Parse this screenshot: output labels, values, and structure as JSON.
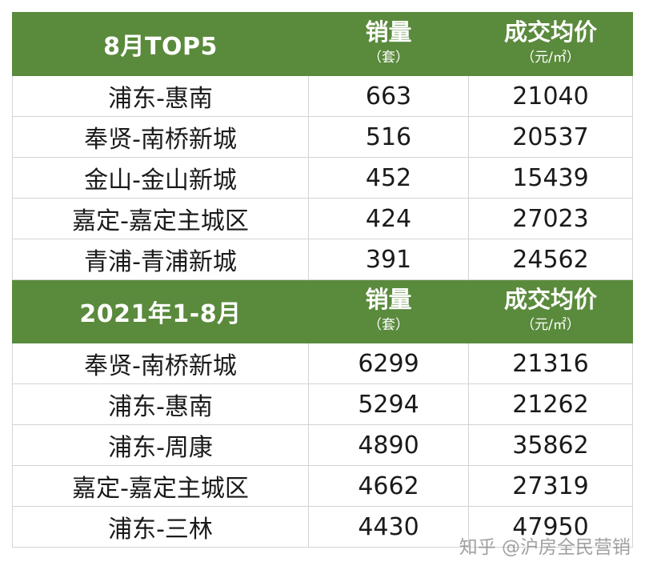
{
  "section1": {
    "title": "8月TOP5",
    "sales_header": "销量",
    "sales_unit": "（套）",
    "price_header": "成交均价",
    "price_unit": "（元/㎡）",
    "rows": [
      {
        "region": "浦东-惠南",
        "sales": "663",
        "price": "21040"
      },
      {
        "region": "奉贤-南桥新城",
        "sales": "516",
        "price": "20537"
      },
      {
        "region": "金山-金山新城",
        "sales": "452",
        "price": "15439"
      },
      {
        "region": "嘉定-嘉定主城区",
        "sales": "424",
        "price": "27023"
      },
      {
        "region": "青浦-青浦新城",
        "sales": "391",
        "price": "24562"
      }
    ]
  },
  "section2": {
    "title": "2021年1-8月",
    "sales_header": "销量",
    "sales_unit": "（套）",
    "price_header": "成交均价",
    "price_unit": "（元/㎡）",
    "rows": [
      {
        "region": "奉贤-南桥新城",
        "sales": "6299",
        "price": "21316"
      },
      {
        "region": "浦东-惠南",
        "sales": "5294",
        "price": "21262"
      },
      {
        "region": "浦东-周康",
        "sales": "4890",
        "price": "35862"
      },
      {
        "region": "嘉定-嘉定主城区",
        "sales": "4662",
        "price": "27319"
      },
      {
        "region": "浦东-三林",
        "sales": "4430",
        "price": "47950"
      }
    ]
  },
  "watermark": "知乎 @沪房全民营销",
  "colors": {
    "header_bg": "#5a8a3c",
    "header_text": "#ffffff",
    "grid": "#d4d4d4"
  }
}
